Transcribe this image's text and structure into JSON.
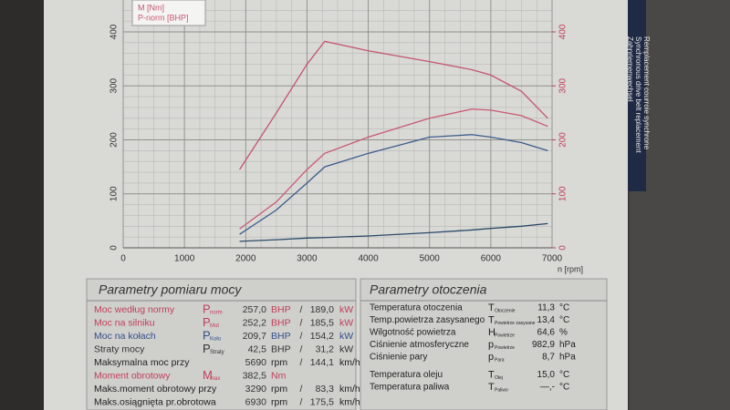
{
  "chart_data": {
    "type": "line",
    "x": [
      1900,
      2500,
      3000,
      3290,
      4000,
      5000,
      5690,
      6000,
      6500,
      6930
    ],
    "series": [
      {
        "name": "M [Nm]",
        "color": "#c4566e",
        "axis": "y2",
        "values": [
          145,
          250,
          340,
          382.5,
          365,
          345,
          330,
          320,
          290,
          240
        ]
      },
      {
        "name": "P-norm [BHP]",
        "color": "#c85a72",
        "values": [
          35,
          85,
          145,
          175,
          205,
          240,
          257,
          255,
          245,
          225
        ]
      },
      {
        "color": "#3c5c8c",
        "values": [
          25,
          70,
          120,
          150,
          175,
          205,
          209.7,
          205,
          195,
          180
        ]
      },
      {
        "color": "#2c4a68",
        "values": [
          12,
          15,
          18,
          19,
          22,
          28,
          33,
          36,
          40,
          45
        ]
      }
    ],
    "xlim": [
      0,
      7000
    ],
    "xticks": [
      0,
      1000,
      2000,
      3000,
      4000,
      5000,
      6000,
      7000
    ],
    "ylim": [
      0,
      400
    ],
    "yticks": [
      0,
      100,
      200,
      300,
      400
    ],
    "y2lim": [
      0,
      400
    ],
    "y2ticks": [
      0,
      100,
      200,
      300,
      400
    ],
    "xlabel": "n [rpm]",
    "grid": true,
    "legend": "top-left"
  },
  "power_table": {
    "title": "Parametry pomiaru mocy",
    "rows": [
      {
        "color": "#c0405a",
        "label": "Moc według normy",
        "sym": "P",
        "sub": "norm",
        "v1": "257,0",
        "u1": "BHP",
        "sep": "/",
        "v2": "189,0",
        "u2": "kW"
      },
      {
        "color": "#c0405a",
        "label": "Moc na silniku",
        "sym": "P",
        "sub": "Mot",
        "v1": "252,2",
        "u1": "BHP",
        "sep": "/",
        "v2": "185,5",
        "u2": "kW"
      },
      {
        "color": "#34508a",
        "label": "Moc na kołach",
        "sym": "P",
        "sub": "Koło",
        "v1": "209,7",
        "u1": "BHP",
        "sep": "/",
        "v2": "154,2",
        "u2": "kW"
      },
      {
        "color": "#333333",
        "label": "Straty mocy",
        "sym": "P",
        "sub": "Straty",
        "v1": "42,5",
        "u1": "BHP",
        "sep": "/",
        "v2": "31,2",
        "u2": "kW"
      },
      {
        "color": "#222222",
        "label": "Maksymalna moc przy",
        "v1": "5690",
        "u1": "rpm",
        "sep": "/",
        "v2": "144,1",
        "u2": "km/h"
      },
      {
        "color": "#c0405a",
        "label": "Moment obrotowy",
        "sym": "M",
        "sub": "max",
        "v1": "382,5",
        "u1": "Nm"
      },
      {
        "color": "#222222",
        "label": "Maks.moment obrotowy przy",
        "v1": "3290",
        "u1": "rpm",
        "sep": "/",
        "v2": "83,3",
        "u2": "km/h"
      },
      {
        "color": "#222222",
        "label": "Maks.osiągnięta pr.obrotowa",
        "v1": "6930",
        "u1": "rpm",
        "sep": "/",
        "v2": "175,5",
        "u2": "km/h"
      }
    ]
  },
  "env_table": {
    "title": "Parametry otoczenia",
    "rows": [
      {
        "label": "Temperatura otoczenia",
        "sym": "T",
        "sub": "Otoczenie",
        "value": "11,3",
        "unit": "°C"
      },
      {
        "label": "Temp.powietrza zasysanego",
        "sym": "T",
        "sub": "Powietrze zasysane",
        "value": "13,4",
        "unit": "°C"
      },
      {
        "label": "Wilgotność powietrza",
        "sym": "H",
        "sub": "Powietrze",
        "value": "64,6",
        "unit": "%"
      },
      {
        "label": "Ciśnienie atmosferyczne",
        "sym": "p",
        "sub": "Powietrze",
        "value": "982,9",
        "unit": "hPa"
      },
      {
        "label": "Ciśnienie pary",
        "sym": "p",
        "sub": "Para",
        "value": "8,7",
        "unit": "hPa"
      },
      {
        "label": "Temperatura oleju",
        "sym": "T",
        "sub": "Olej",
        "value": "15,0",
        "unit": "°C"
      },
      {
        "label": "Temperatura paliwa",
        "sym": "T",
        "sub": "Paliwo",
        "value": "—,-",
        "unit": "°C"
      }
    ]
  },
  "side_label": {
    "lines": [
      "Zahnriemenwechsel",
      "Synchronous drive belt replacement",
      "Remplacement courroie synchrone"
    ]
  }
}
